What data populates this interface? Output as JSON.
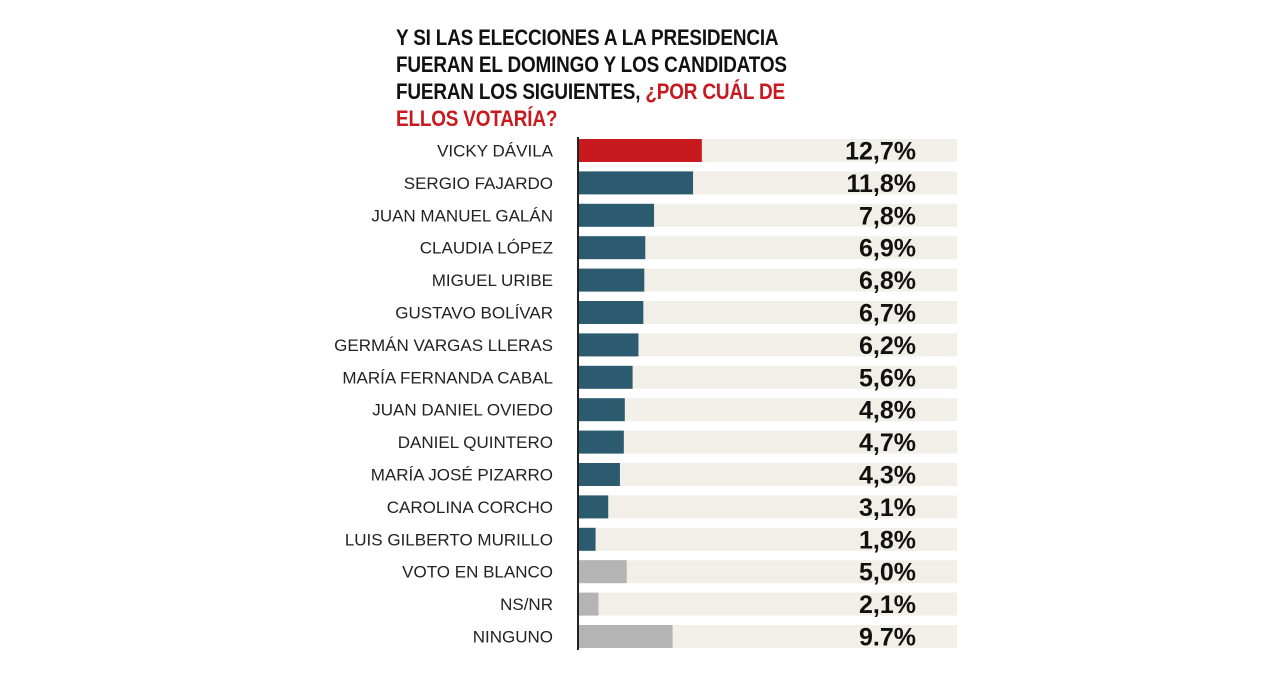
{
  "title": {
    "main": "Y SI LAS ELECCIONES A LA PRESIDENCIA FUERAN EL DOMINGO Y LOS CANDIDATOS FUERAN LOS SIGUIENTES,",
    "highlight": "¿POR CUÁL DE ELLOS VOTARÍA?"
  },
  "colors": {
    "highlight": "#c8191f",
    "candidate": "#2c5a6f",
    "other": "#b4b4b4",
    "track": "#f2efe8",
    "axis": "#222222"
  },
  "chart_data": {
    "type": "bar",
    "orientation": "horizontal",
    "xlim": [
      0,
      30
    ],
    "grid": false,
    "categories": [
      "VICKY DÁVILA",
      "SERGIO FAJARDO",
      "JUAN MANUEL GALÁN",
      "CLAUDIA LÓPEZ",
      "MIGUEL URIBE",
      "GUSTAVO BOLÍVAR",
      "GERMÁN VARGAS LLERAS",
      "MARÍA FERNANDA CABAL",
      "JUAN DANIEL OVIEDO",
      "DANIEL QUINTERO",
      "MARÍA JOSÉ PIZARRO",
      "CAROLINA CORCHO",
      "LUIS GILBERTO MURILLO",
      "VOTO EN BLANCO",
      "NS/NR",
      "NINGUNO"
    ],
    "values": [
      12.7,
      11.8,
      7.8,
      6.9,
      6.8,
      6.7,
      6.2,
      5.6,
      4.8,
      4.7,
      4.3,
      3.1,
      1.8,
      5.0,
      2.1,
      9.7
    ],
    "value_labels": [
      "12,7%",
      "11,8%",
      "7,8%",
      "6,9%",
      "6,8%",
      "6,7%",
      "6,2%",
      "5,6%",
      "4,8%",
      "4,7%",
      "4,3%",
      "3,1%",
      "1,8%",
      "5,0%",
      "2,1%",
      "9.7%"
    ],
    "bar_kind": [
      "highlight",
      "candidate",
      "candidate",
      "candidate",
      "candidate",
      "candidate",
      "candidate",
      "candidate",
      "candidate",
      "candidate",
      "candidate",
      "candidate",
      "candidate",
      "other",
      "other",
      "other"
    ]
  }
}
